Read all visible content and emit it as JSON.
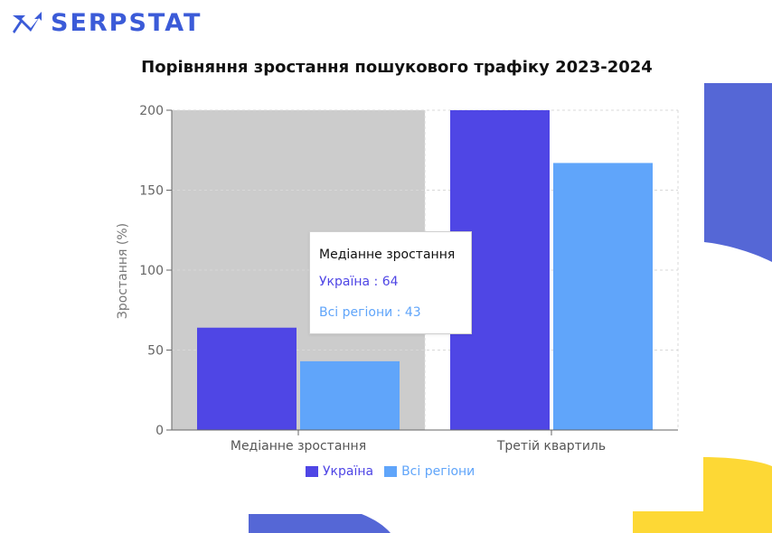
{
  "brand": {
    "name": "SERPSTAT",
    "color": "#3b5bd8"
  },
  "colors": {
    "ukraine": "#4f46e5",
    "all_regions": "#60a5fa",
    "hover_band": "#cccccc",
    "deco_blue": "#5567d6",
    "deco_yellow": "#fdd835"
  },
  "tooltip": {
    "title": "Медіанне зростання",
    "row1": "Україна : 64",
    "row2": "Всі регіони : 43"
  },
  "chart_data": {
    "type": "bar",
    "title": "Порівняння зростання пошукового трафіку 2023-2024",
    "ylabel": "Зростання (%)",
    "xlabel": "",
    "categories": [
      "Медіанне зростання",
      "Третій квартиль"
    ],
    "series": [
      {
        "name": "Україна",
        "values": [
          64,
          200
        ],
        "color": "#4f46e5"
      },
      {
        "name": "Всі регіони",
        "values": [
          43,
          167
        ],
        "color": "#60a5fa"
      }
    ],
    "ylim": [
      0,
      200
    ],
    "yticks": [
      0,
      50,
      100,
      150,
      200
    ],
    "grid": true,
    "legend": "bottom",
    "highlighted_category": "Медіанне зростання"
  }
}
